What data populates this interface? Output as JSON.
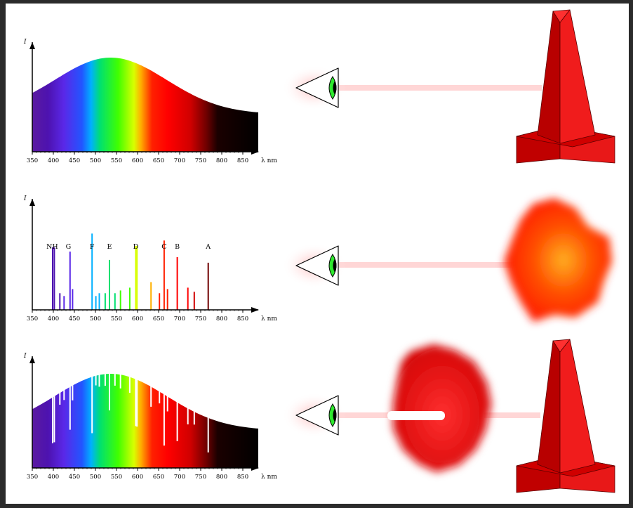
{
  "panels": [
    {
      "type": "continuous",
      "y_axis_label": "I",
      "x_axis_label": "λ nm",
      "ticks": [
        "350",
        "400",
        "450",
        "500",
        "550",
        "600",
        "650",
        "700",
        "750",
        "800",
        "850"
      ]
    },
    {
      "type": "emission",
      "y_axis_label": "I",
      "x_axis_label": "λ nm",
      "ticks": [
        "350",
        "400",
        "450",
        "500",
        "550",
        "600",
        "650",
        "700",
        "750",
        "800",
        "850"
      ],
      "line_labels": [
        {
          "text": "NH",
          "wavelength": 392
        },
        {
          "text": "G",
          "wavelength": 430
        },
        {
          "text": "F",
          "wavelength": 486
        },
        {
          "text": "E",
          "wavelength": 527
        },
        {
          "text": "D",
          "wavelength": 589
        },
        {
          "text": "C",
          "wavelength": 656
        },
        {
          "text": "B",
          "wavelength": 687
        },
        {
          "text": "A",
          "wavelength": 760
        }
      ]
    },
    {
      "type": "absorption",
      "y_axis_label": "I",
      "x_axis_label": "λ nm",
      "ticks": [
        "350",
        "400",
        "450",
        "500",
        "550",
        "600",
        "650",
        "700",
        "750",
        "800",
        "850"
      ]
    }
  ],
  "emission_lines": [
    {
      "wavelength": 393,
      "strength": 0.45
    },
    {
      "wavelength": 397,
      "strength": 0.45
    },
    {
      "wavelength": 410,
      "strength": 0.12
    },
    {
      "wavelength": 420,
      "strength": 0.1
    },
    {
      "wavelength": 434,
      "strength": 0.42
    },
    {
      "wavelength": 440,
      "strength": 0.15
    },
    {
      "wavelength": 486,
      "strength": 0.55
    },
    {
      "wavelength": 495,
      "strength": 0.1
    },
    {
      "wavelength": 503,
      "strength": 0.12
    },
    {
      "wavelength": 517,
      "strength": 0.12
    },
    {
      "wavelength": 527,
      "strength": 0.36
    },
    {
      "wavelength": 540,
      "strength": 0.12
    },
    {
      "wavelength": 553,
      "strength": 0.14
    },
    {
      "wavelength": 575,
      "strength": 0.16
    },
    {
      "wavelength": 589,
      "strength": 0.46
    },
    {
      "wavelength": 592,
      "strength": 0.46
    },
    {
      "wavelength": 625,
      "strength": 0.2
    },
    {
      "wavelength": 645,
      "strength": 0.12
    },
    {
      "wavelength": 656,
      "strength": 0.5
    },
    {
      "wavelength": 664,
      "strength": 0.15
    },
    {
      "wavelength": 687,
      "strength": 0.38
    },
    {
      "wavelength": 712,
      "strength": 0.16
    },
    {
      "wavelength": 727,
      "strength": 0.13
    },
    {
      "wavelength": 760,
      "strength": 0.34
    }
  ],
  "colors": {
    "tower": "#e01010",
    "tower_dark": "#a00000",
    "cloud_hot": "#ff9a1a",
    "cloud_red": "#ff2000",
    "cloud_cool": "#d80000",
    "beam": "#ffd0d0",
    "iris": "#2ee82e",
    "panel_bg": "#ffffff"
  },
  "icons": [
    "eye-icon",
    "hot-source-icon",
    "gas-cloud-icon"
  ]
}
